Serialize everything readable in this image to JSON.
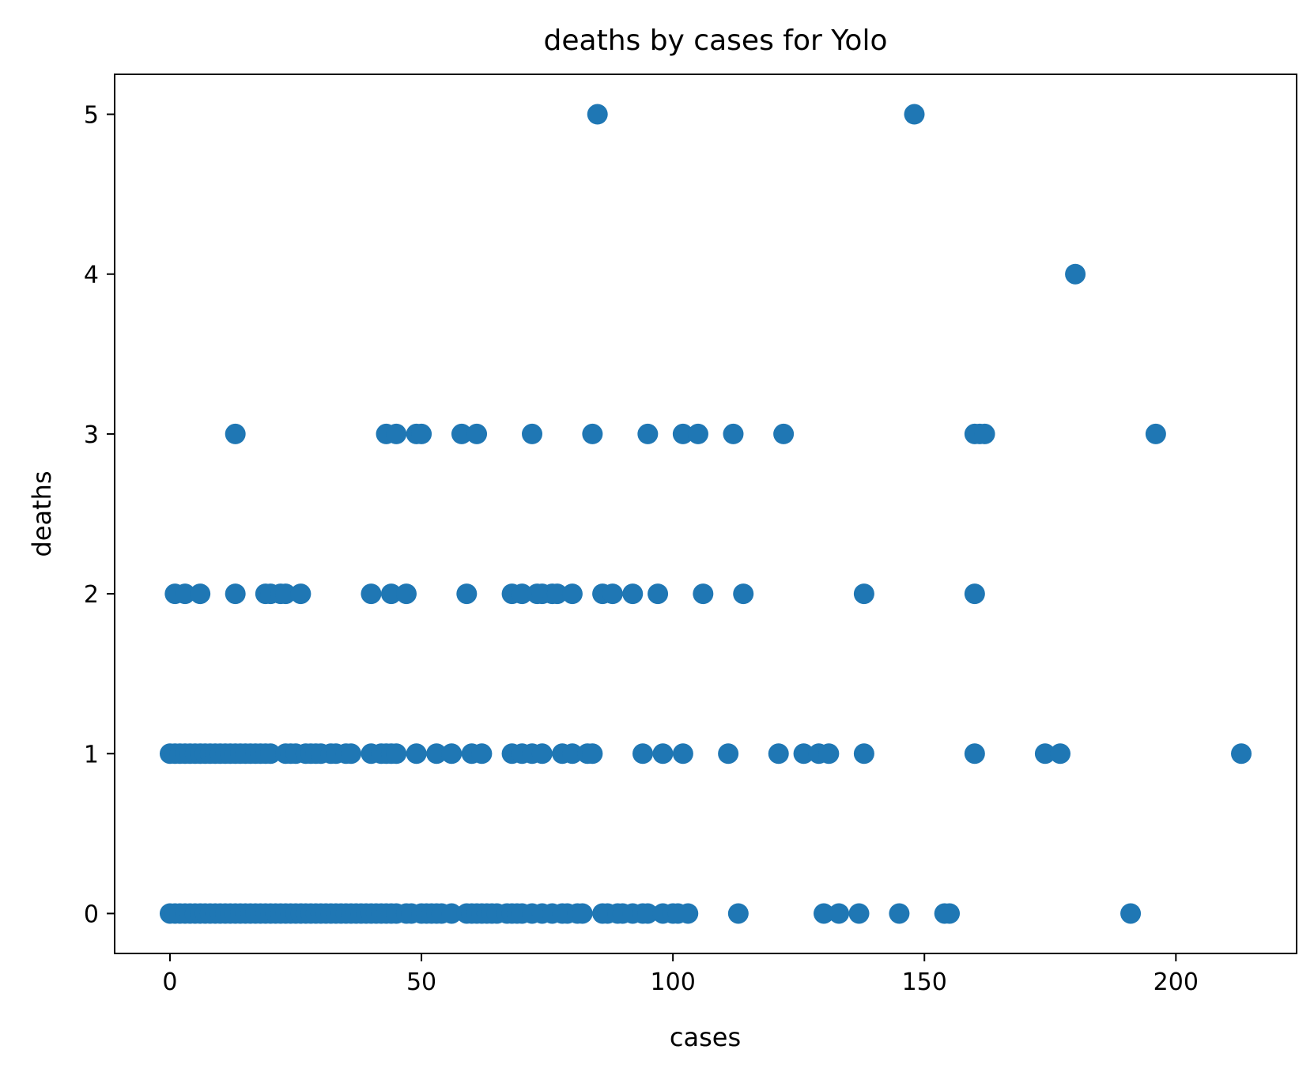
{
  "chart_data": {
    "type": "scatter",
    "title": "deaths by cases for Yolo",
    "xlabel": "cases",
    "ylabel": "deaths",
    "xlim": [
      -11,
      224
    ],
    "ylim": [
      -0.25,
      5.25
    ],
    "xticks": [
      0,
      50,
      100,
      150,
      200
    ],
    "yticks": [
      0,
      1,
      2,
      3,
      4,
      5
    ],
    "grid": false,
    "marker_color": "#1f77b4",
    "series": [
      {
        "points": [
          [
            0,
            0
          ],
          [
            1,
            0
          ],
          [
            2,
            0
          ],
          [
            3,
            0
          ],
          [
            4,
            0
          ],
          [
            5,
            0
          ],
          [
            6,
            0
          ],
          [
            7,
            0
          ],
          [
            8,
            0
          ],
          [
            9,
            0
          ],
          [
            10,
            0
          ],
          [
            11,
            0
          ],
          [
            12,
            0
          ],
          [
            13,
            0
          ],
          [
            14,
            0
          ],
          [
            15,
            0
          ],
          [
            16,
            0
          ],
          [
            17,
            0
          ],
          [
            18,
            0
          ],
          [
            19,
            0
          ],
          [
            20,
            0
          ],
          [
            21,
            0
          ],
          [
            22,
            0
          ],
          [
            23,
            0
          ],
          [
            24,
            0
          ],
          [
            25,
            0
          ],
          [
            26,
            0
          ],
          [
            27,
            0
          ],
          [
            28,
            0
          ],
          [
            29,
            0
          ],
          [
            30,
            0
          ],
          [
            31,
            0
          ],
          [
            32,
            0
          ],
          [
            33,
            0
          ],
          [
            34,
            0
          ],
          [
            35,
            0
          ],
          [
            36,
            0
          ],
          [
            37,
            0
          ],
          [
            38,
            0
          ],
          [
            39,
            0
          ],
          [
            40,
            0
          ],
          [
            41,
            0
          ],
          [
            42,
            0
          ],
          [
            43,
            0
          ],
          [
            44,
            0
          ],
          [
            45,
            0
          ],
          [
            47,
            0
          ],
          [
            48,
            0
          ],
          [
            50,
            0
          ],
          [
            51,
            0
          ],
          [
            52,
            0
          ],
          [
            53,
            0
          ],
          [
            54,
            0
          ],
          [
            56,
            0
          ],
          [
            59,
            0
          ],
          [
            60,
            0
          ],
          [
            61,
            0
          ],
          [
            62,
            0
          ],
          [
            63,
            0
          ],
          [
            64,
            0
          ],
          [
            65,
            0
          ],
          [
            67,
            0
          ],
          [
            68,
            0
          ],
          [
            69,
            0
          ],
          [
            70,
            0
          ],
          [
            72,
            0
          ],
          [
            74,
            0
          ],
          [
            76,
            0
          ],
          [
            78,
            0
          ],
          [
            79,
            0
          ],
          [
            81,
            0
          ],
          [
            82,
            0
          ],
          [
            86,
            0
          ],
          [
            87,
            0
          ],
          [
            89,
            0
          ],
          [
            90,
            0
          ],
          [
            92,
            0
          ],
          [
            94,
            0
          ],
          [
            95,
            0
          ],
          [
            98,
            0
          ],
          [
            100,
            0
          ],
          [
            101,
            0
          ],
          [
            103,
            0
          ],
          [
            113,
            0
          ],
          [
            130,
            0
          ],
          [
            133,
            0
          ],
          [
            137,
            0
          ],
          [
            145,
            0
          ],
          [
            154,
            0
          ],
          [
            155,
            0
          ],
          [
            191,
            0
          ],
          [
            0,
            1
          ],
          [
            1,
            1
          ],
          [
            2,
            1
          ],
          [
            3,
            1
          ],
          [
            4,
            1
          ],
          [
            5,
            1
          ],
          [
            6,
            1
          ],
          [
            7,
            1
          ],
          [
            8,
            1
          ],
          [
            9,
            1
          ],
          [
            10,
            1
          ],
          [
            11,
            1
          ],
          [
            12,
            1
          ],
          [
            13,
            1
          ],
          [
            14,
            1
          ],
          [
            15,
            1
          ],
          [
            16,
            1
          ],
          [
            17,
            1
          ],
          [
            18,
            1
          ],
          [
            19,
            1
          ],
          [
            20,
            1
          ],
          [
            23,
            1
          ],
          [
            24,
            1
          ],
          [
            25,
            1
          ],
          [
            27,
            1
          ],
          [
            28,
            1
          ],
          [
            29,
            1
          ],
          [
            30,
            1
          ],
          [
            32,
            1
          ],
          [
            33,
            1
          ],
          [
            35,
            1
          ],
          [
            36,
            1
          ],
          [
            40,
            1
          ],
          [
            42,
            1
          ],
          [
            43,
            1
          ],
          [
            44,
            1
          ],
          [
            45,
            1
          ],
          [
            49,
            1
          ],
          [
            53,
            1
          ],
          [
            56,
            1
          ],
          [
            60,
            1
          ],
          [
            62,
            1
          ],
          [
            68,
            1
          ],
          [
            70,
            1
          ],
          [
            72,
            1
          ],
          [
            74,
            1
          ],
          [
            78,
            1
          ],
          [
            80,
            1
          ],
          [
            83,
            1
          ],
          [
            84,
            1
          ],
          [
            94,
            1
          ],
          [
            98,
            1
          ],
          [
            102,
            1
          ],
          [
            111,
            1
          ],
          [
            121,
            1
          ],
          [
            126,
            1
          ],
          [
            129,
            1
          ],
          [
            131,
            1
          ],
          [
            138,
            1
          ],
          [
            160,
            1
          ],
          [
            174,
            1
          ],
          [
            177,
            1
          ],
          [
            213,
            1
          ],
          [
            1,
            2
          ],
          [
            3,
            2
          ],
          [
            6,
            2
          ],
          [
            13,
            2
          ],
          [
            19,
            2
          ],
          [
            20,
            2
          ],
          [
            22,
            2
          ],
          [
            23,
            2
          ],
          [
            26,
            2
          ],
          [
            40,
            2
          ],
          [
            44,
            2
          ],
          [
            47,
            2
          ],
          [
            59,
            2
          ],
          [
            68,
            2
          ],
          [
            70,
            2
          ],
          [
            73,
            2
          ],
          [
            74,
            2
          ],
          [
            76,
            2
          ],
          [
            77,
            2
          ],
          [
            80,
            2
          ],
          [
            86,
            2
          ],
          [
            88,
            2
          ],
          [
            92,
            2
          ],
          [
            97,
            2
          ],
          [
            106,
            2
          ],
          [
            114,
            2
          ],
          [
            138,
            2
          ],
          [
            160,
            2
          ],
          [
            13,
            3
          ],
          [
            43,
            3
          ],
          [
            45,
            3
          ],
          [
            49,
            3
          ],
          [
            50,
            3
          ],
          [
            58,
            3
          ],
          [
            61,
            3
          ],
          [
            72,
            3
          ],
          [
            84,
            3
          ],
          [
            95,
            3
          ],
          [
            102,
            3
          ],
          [
            105,
            3
          ],
          [
            112,
            3
          ],
          [
            122,
            3
          ],
          [
            160,
            3
          ],
          [
            161,
            3
          ],
          [
            162,
            3
          ],
          [
            196,
            3
          ],
          [
            180,
            4
          ],
          [
            85,
            5
          ],
          [
            148,
            5
          ]
        ]
      }
    ]
  }
}
